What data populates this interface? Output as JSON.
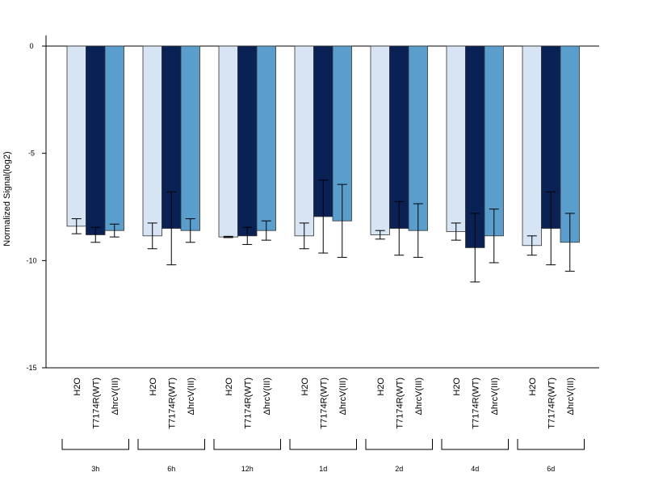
{
  "chart_data": {
    "type": "bar",
    "ylabel": "Normalized Signal(log2)",
    "ylim": [
      -15,
      0.5
    ],
    "yticks": [
      0,
      -5,
      -10,
      -15
    ],
    "grid": false,
    "legend": "none",
    "groups": [
      "3h",
      "6h",
      "12h",
      "1d",
      "2d",
      "4d",
      "6d"
    ],
    "conditions": [
      "H2O",
      "T7174R(WT)",
      "ΔhrcV(III)"
    ],
    "colors": [
      "#d6e4f4",
      "#0a2156",
      "#5a9ecd"
    ],
    "series": [
      {
        "name": "H2O",
        "values": [
          -8.4,
          -8.85,
          -8.9,
          -8.85,
          -8.8,
          -8.65,
          -9.3
        ],
        "error": [
          0.35,
          0.6,
          0.03,
          0.6,
          0.2,
          0.4,
          0.45
        ]
      },
      {
        "name": "T7174R(WT)",
        "values": [
          -8.8,
          -8.5,
          -8.85,
          -7.95,
          -8.5,
          -9.4,
          -8.5
        ],
        "error": [
          0.35,
          1.7,
          0.4,
          1.7,
          1.25,
          1.6,
          1.7
        ]
      },
      {
        "name": "ΔhrcV(III)",
        "values": [
          -8.6,
          -8.6,
          -8.6,
          -8.15,
          -8.6,
          -8.85,
          -9.15
        ],
        "error": [
          0.3,
          0.55,
          0.45,
          1.7,
          1.25,
          1.25,
          1.35
        ]
      }
    ]
  }
}
